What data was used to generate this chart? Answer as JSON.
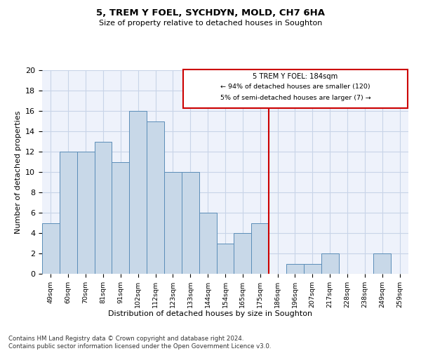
{
  "title": "5, TREM Y FOEL, SYCHDYN, MOLD, CH7 6HA",
  "subtitle": "Size of property relative to detached houses in Soughton",
  "xlabel": "Distribution of detached houses by size in Soughton",
  "ylabel": "Number of detached properties",
  "categories": [
    "49sqm",
    "60sqm",
    "70sqm",
    "81sqm",
    "91sqm",
    "102sqm",
    "112sqm",
    "123sqm",
    "133sqm",
    "144sqm",
    "154sqm",
    "165sqm",
    "175sqm",
    "186sqm",
    "196sqm",
    "207sqm",
    "217sqm",
    "228sqm",
    "238sqm",
    "249sqm",
    "259sqm"
  ],
  "values": [
    5,
    12,
    12,
    13,
    11,
    16,
    15,
    10,
    10,
    6,
    3,
    4,
    5,
    0,
    1,
    1,
    2,
    0,
    0,
    2,
    0
  ],
  "bar_color": "#c8d8e8",
  "bar_edge_color": "#5b8db8",
  "ylim": [
    0,
    20
  ],
  "yticks": [
    0,
    2,
    4,
    6,
    8,
    10,
    12,
    14,
    16,
    18,
    20
  ],
  "ref_line_index": 13,
  "ref_line_label": "5 TREM Y FOEL: 184sqm",
  "ref_line_pct_smaller": "94% of detached houses are smaller (120)",
  "ref_line_pct_larger": "5% of semi-detached houses are larger (7)",
  "ref_line_color": "#cc0000",
  "annotation_box_color": "#cc0000",
  "footer": "Contains HM Land Registry data © Crown copyright and database right 2024.\nContains public sector information licensed under the Open Government Licence v3.0.",
  "grid_color": "#c8d4e8",
  "background_color": "#eef2fb"
}
